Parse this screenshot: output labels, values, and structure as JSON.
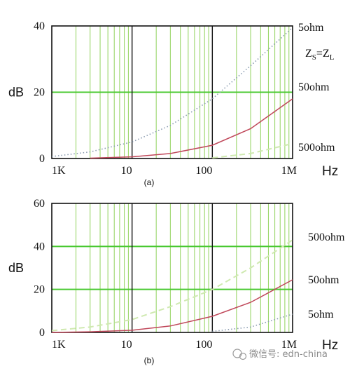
{
  "chart_data": [
    {
      "type": "line",
      "panel_label": "(a)",
      "ylabel": "dB",
      "xlabel": "Hz",
      "x_scale": "log",
      "xlim": [
        1000,
        1000000
      ],
      "ylim": [
        0,
        40
      ],
      "y_ticks": [
        "0",
        "20",
        "40"
      ],
      "x_ticks": [
        "1K",
        "10",
        "100",
        "1M"
      ],
      "condition_label": "ZS=ZL",
      "grid": true,
      "colors": {
        "grid_minor": "#9ad66a",
        "grid_major_y": "#49c930",
        "grid_decade": "#111111"
      },
      "series": [
        {
          "name": "5ohm",
          "style": "dotted",
          "color": "#8a9bb0",
          "x": [
            1000,
            3000,
            10000,
            30000,
            100000,
            300000,
            1000000
          ],
          "y": [
            0.6,
            2.0,
            5.0,
            10.0,
            18.0,
            28.0,
            39.5
          ]
        },
        {
          "name": "50ohm",
          "style": "solid",
          "color": "#c0485a",
          "x": [
            3000,
            10000,
            30000,
            100000,
            300000,
            1000000
          ],
          "y": [
            0.1,
            0.5,
            1.5,
            4.0,
            9.0,
            18.0
          ]
        },
        {
          "name": "500ohm",
          "style": "dashed",
          "color": "#cfe9b0",
          "x": [
            100000,
            300000,
            1000000
          ],
          "y": [
            0.2,
            1.5,
            4.5
          ]
        }
      ]
    },
    {
      "type": "line",
      "panel_label": "(b)",
      "ylabel": "dB",
      "xlabel": "Hz",
      "x_scale": "log",
      "xlim": [
        1000,
        1000000
      ],
      "ylim": [
        0,
        60
      ],
      "y_ticks": [
        "0",
        "20",
        "40",
        "60"
      ],
      "x_ticks": [
        "1K",
        "10",
        "100",
        "1M"
      ],
      "grid": true,
      "colors": {
        "grid_minor": "#9ad66a",
        "grid_major_y": "#49c930",
        "grid_decade": "#111111"
      },
      "series": [
        {
          "name": "500ohm",
          "style": "dashed",
          "color": "#cfe9b0",
          "x": [
            1000,
            3000,
            10000,
            30000,
            100000,
            300000,
            1000000
          ],
          "y": [
            0.8,
            2.5,
            6.0,
            12.0,
            20.0,
            30.0,
            43.0
          ]
        },
        {
          "name": "50ohm",
          "style": "solid",
          "color": "#c0485a",
          "x": [
            1000,
            3000,
            10000,
            30000,
            100000,
            300000,
            1000000
          ],
          "y": [
            0.0,
            0.3,
            1.0,
            3.0,
            7.5,
            14.0,
            24.5
          ]
        },
        {
          "name": "5ohm",
          "style": "dotted",
          "color": "#8a9bb0",
          "x": [
            100000,
            300000,
            1000000
          ],
          "y": [
            0.5,
            2.5,
            8.5
          ]
        }
      ]
    }
  ],
  "watermark": {
    "text": "微信号: edn-china",
    "icon": "wechat-icon"
  }
}
